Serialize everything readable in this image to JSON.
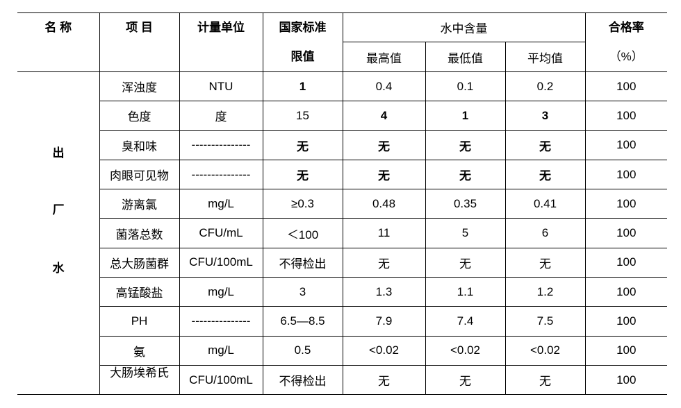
{
  "header": {
    "name": "名 称",
    "item": "项 目",
    "unit": "计量单位",
    "standard": [
      "国家标准",
      "限值"
    ],
    "content": "水中含量",
    "sub": [
      "最高值",
      "最低值",
      "平均值"
    ],
    "rate": [
      "合格率",
      "（%）"
    ]
  },
  "table": {
    "group": [
      "出",
      "厂",
      "水"
    ],
    "rows": [
      [
        "浑浊度",
        "NTU",
        "1",
        "0.4",
        "0.1",
        "0.2",
        "100"
      ],
      [
        "色度",
        "度",
        "15",
        "4",
        "1",
        "3",
        "100"
      ],
      [
        "臭和味",
        "---------------",
        "无",
        "无",
        "无",
        "无",
        "100"
      ],
      [
        "肉眼可见物",
        "---------------",
        "无",
        "无",
        "无",
        "无",
        "100"
      ],
      [
        "游离氯",
        "mg/L",
        "≥0.3",
        "0.48",
        "0.35",
        "0.41",
        "100"
      ],
      [
        "菌落总数",
        "CFU/mL",
        "＜100",
        "11",
        "5",
        "6",
        "100"
      ],
      [
        "总大肠菌群",
        "CFU/100mL",
        "不得检出",
        "无",
        "无",
        "无",
        "100"
      ],
      [
        "高锰酸盐",
        "mg/L",
        "3",
        "1.3",
        "1.1",
        "1.2",
        "100"
      ],
      [
        "PH",
        "---------------",
        "6.5—8.5",
        "7.9",
        "7.4",
        "7.5",
        "100"
      ],
      [
        "氨",
        "mg/L",
        "0.5",
        "<0.02",
        "<0.02",
        "<0.02",
        "100"
      ],
      [
        "大肠埃希氏",
        "CFU/100mL",
        "不得检出",
        "无",
        "无",
        "无",
        "100"
      ]
    ]
  }
}
